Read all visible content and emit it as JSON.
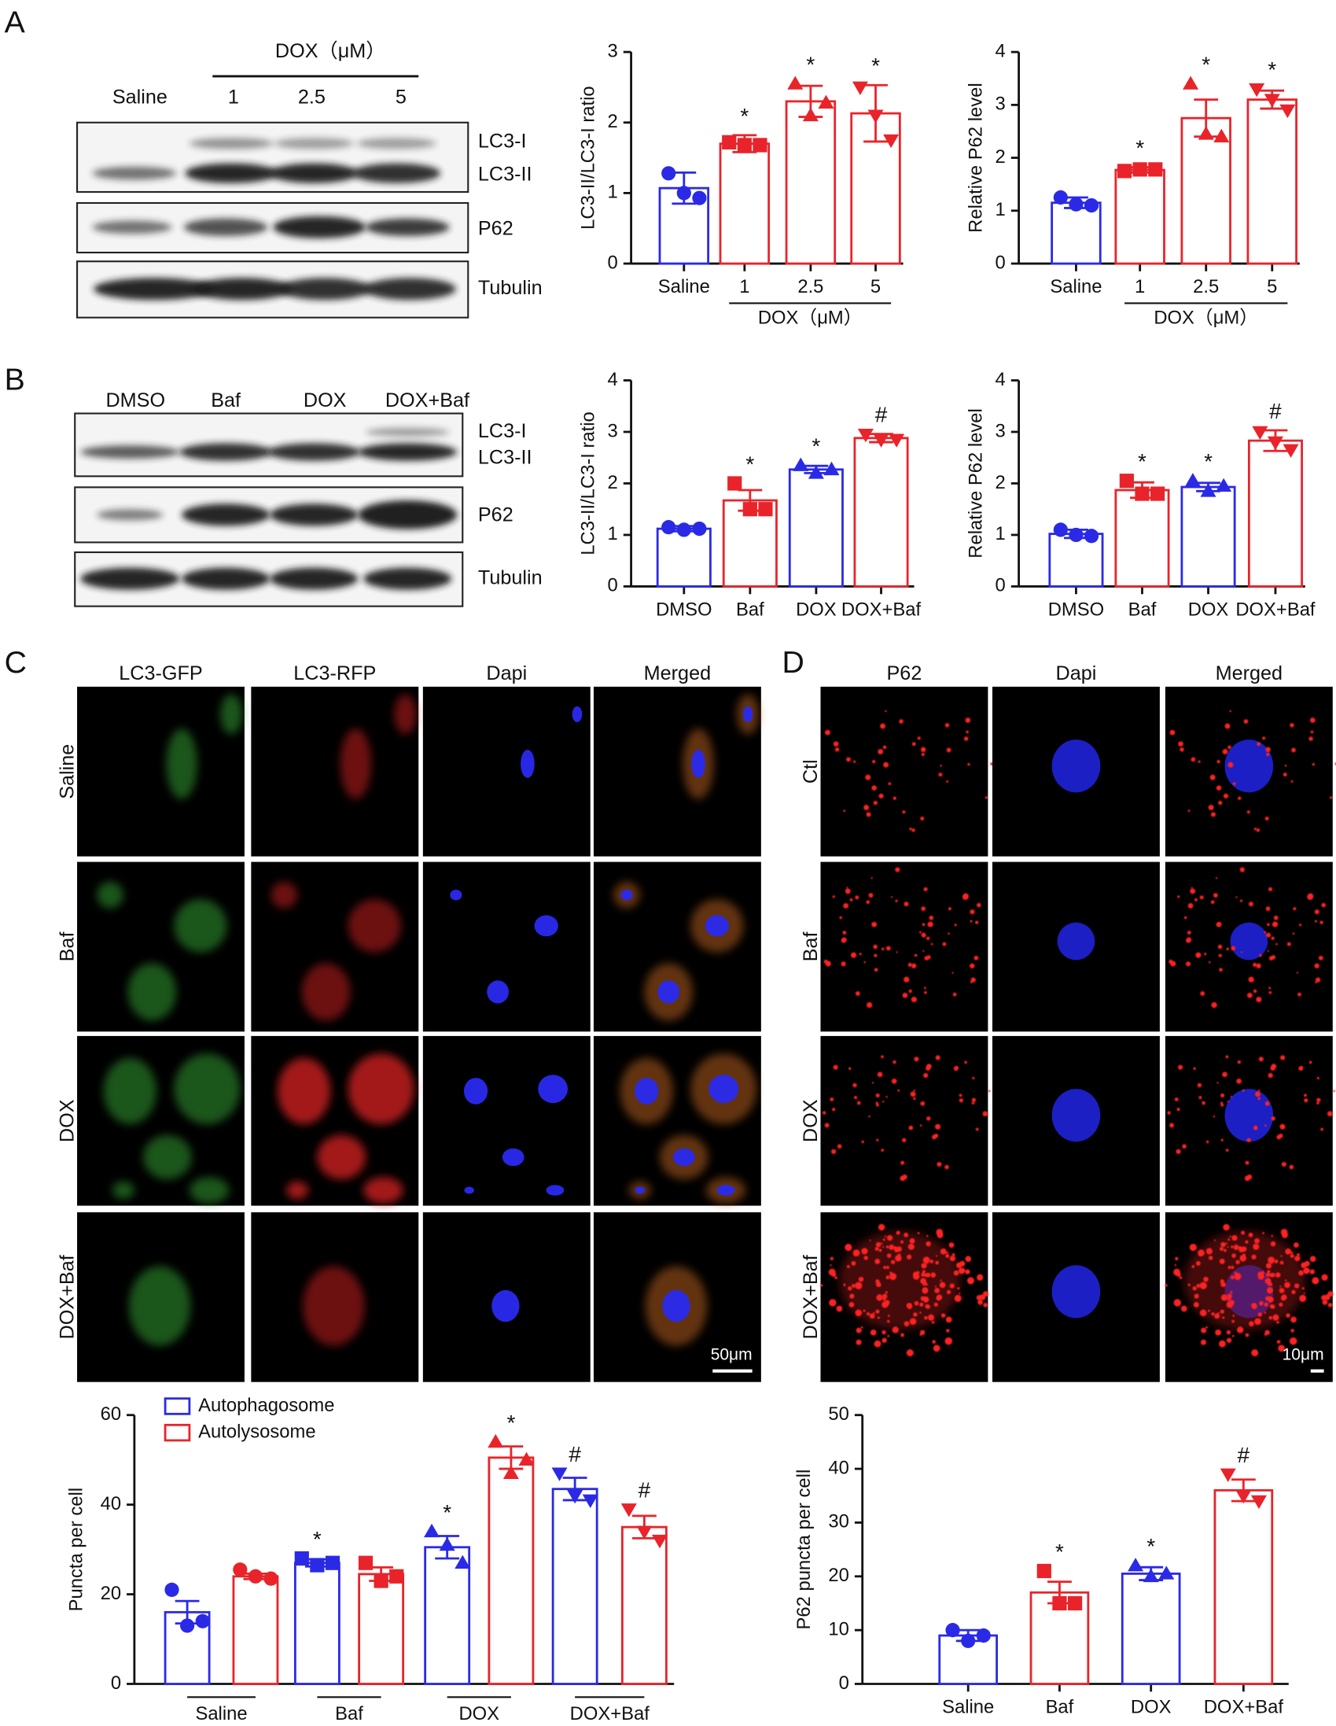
{
  "panel_labels": [
    "A",
    "B",
    "C",
    "D"
  ],
  "blots": [
    {
      "lanes": [
        "Saline",
        "1",
        "2.5",
        "5"
      ],
      "group_label": "DOX（μM）",
      "bands": [
        "LC3-I",
        "LC3-II",
        "P62",
        "Tubulin"
      ]
    },
    {
      "lanes": [
        "DMSO",
        "Baf",
        "DOX",
        "DOX+Baf"
      ],
      "bands": [
        "LC3-I",
        "LC3-II",
        "P62",
        "Tubulin"
      ]
    }
  ],
  "micrographs": [
    {
      "columns": [
        "LC3-GFP",
        "LC3-RFP",
        "Dapi",
        "Merged"
      ],
      "rows": [
        "Saline",
        "Baf",
        "DOX",
        "DOX+Baf"
      ],
      "scale_bar": "50μm"
    },
    {
      "columns": [
        "P62",
        "Dapi",
        "Merged"
      ],
      "rows": [
        "Ctl",
        "Baf",
        "DOX",
        "DOX+Baf"
      ],
      "scale_bar": "10μm"
    }
  ],
  "chart_data": [
    {
      "type": "bar",
      "ylabel": "LC3-II/LC3-I ratio",
      "categories": [
        "Saline",
        "1",
        "2.5",
        "5"
      ],
      "group_label": "DOX（μM）",
      "values": [
        1.07,
        1.7,
        2.3,
        2.13
      ],
      "errors": [
        0.22,
        0.12,
        0.22,
        0.4
      ],
      "points": [
        [
          1.28,
          1.0,
          0.93
        ],
        [
          1.72,
          1.68,
          1.68
        ],
        [
          2.55,
          2.1,
          2.28
        ],
        [
          2.5,
          2.1,
          1.75
        ]
      ],
      "colors": [
        "#2a2ae6",
        "#e8242a",
        "#e8242a",
        "#e8242a"
      ],
      "markers": [
        "circle",
        "square",
        "triangle",
        "triangle-down"
      ],
      "annotations": [
        null,
        "*",
        "*",
        "*"
      ],
      "ylim": [
        0,
        3
      ],
      "yticks": [
        0,
        1,
        2,
        3
      ]
    },
    {
      "type": "bar",
      "ylabel": "Relative P62 level",
      "categories": [
        "Saline",
        "1",
        "2.5",
        "5"
      ],
      "group_label": "DOX（μM）",
      "values": [
        1.15,
        1.77,
        2.75,
        3.1
      ],
      "errors": [
        0.1,
        0.05,
        0.35,
        0.17
      ],
      "points": [
        [
          1.25,
          1.12,
          1.1
        ],
        [
          1.75,
          1.78,
          1.78
        ],
        [
          3.4,
          2.45,
          2.4
        ],
        [
          3.3,
          3.1,
          2.9
        ]
      ],
      "colors": [
        "#2a2ae6",
        "#e8242a",
        "#e8242a",
        "#e8242a"
      ],
      "markers": [
        "circle",
        "square",
        "triangle",
        "triangle-down"
      ],
      "annotations": [
        null,
        "*",
        "*",
        "*"
      ],
      "ylim": [
        0,
        4
      ],
      "yticks": [
        0,
        1,
        2,
        3,
        4
      ]
    },
    {
      "type": "bar",
      "ylabel": "LC3-II/LC3-I ratio",
      "categories": [
        "DMSO",
        "Baf",
        "DOX",
        "DOX+Baf"
      ],
      "values": [
        1.12,
        1.67,
        2.27,
        2.88
      ],
      "errors": [
        0.05,
        0.2,
        0.07,
        0.08
      ],
      "points": [
        [
          1.15,
          1.1,
          1.12
        ],
        [
          2.0,
          1.5,
          1.5
        ],
        [
          2.35,
          2.2,
          2.27
        ],
        [
          2.95,
          2.85,
          2.85
        ]
      ],
      "colors": [
        "#2a2ae6",
        "#e8242a",
        "#2a2ae6",
        "#e8242a"
      ],
      "markers": [
        "circle",
        "square",
        "triangle",
        "triangle-down"
      ],
      "annotations": [
        null,
        "*",
        "*",
        "#"
      ],
      "ylim": [
        0,
        4
      ],
      "yticks": [
        0,
        1,
        2,
        3,
        4
      ]
    },
    {
      "type": "bar",
      "ylabel": "Relative P62 level",
      "categories": [
        "DMSO",
        "Baf",
        "DOX",
        "DOX+Baf"
      ],
      "values": [
        1.02,
        1.87,
        1.93,
        2.83
      ],
      "errors": [
        0.08,
        0.15,
        0.08,
        0.2
      ],
      "points": [
        [
          1.1,
          1.0,
          0.98
        ],
        [
          2.05,
          1.8,
          1.8
        ],
        [
          2.05,
          1.85,
          1.95
        ],
        [
          3.0,
          2.8,
          2.65
        ]
      ],
      "colors": [
        "#2a2ae6",
        "#e8242a",
        "#2a2ae6",
        "#e8242a"
      ],
      "markers": [
        "circle",
        "square",
        "triangle",
        "triangle-down"
      ],
      "annotations": [
        null,
        "*",
        "*",
        "#"
      ],
      "ylim": [
        0,
        4
      ],
      "yticks": [
        0,
        1,
        2,
        3,
        4
      ]
    },
    {
      "type": "grouped_bar",
      "ylabel": "Puncta per cell",
      "categories": [
        "Saline",
        "Baf",
        "DOX",
        "DOX+Baf"
      ],
      "markers": [
        "circle",
        "square",
        "triangle",
        "triangle-down"
      ],
      "legend": "top-left",
      "series": [
        {
          "name": "Autophagosome",
          "color": "#2a2ae6",
          "values": [
            16,
            27,
            30.5,
            43.5
          ],
          "errors": [
            2.5,
            0.8,
            2.5,
            2.5
          ],
          "points": [
            [
              21,
              13,
              14
            ],
            [
              28,
              26.5,
              27
            ],
            [
              34,
              31,
              27
            ],
            [
              47,
              42,
              41
            ]
          ],
          "annotations": [
            null,
            "*",
            "*",
            "#"
          ]
        },
        {
          "name": "Autolysosome",
          "color": "#e8242a",
          "values": [
            24,
            24.5,
            50.5,
            35
          ],
          "errors": [
            0.6,
            1.5,
            2.5,
            2.5
          ],
          "points": [
            [
              25.5,
              24,
              23.5
            ],
            [
              27,
              23,
              24
            ],
            [
              54,
              47,
              50
            ],
            [
              39,
              34,
              32
            ]
          ],
          "annotations": [
            null,
            null,
            "*",
            "#"
          ]
        }
      ],
      "ylim": [
        0,
        60
      ],
      "yticks": [
        0,
        20,
        40,
        60
      ]
    },
    {
      "type": "bar",
      "ylabel": "P62 puncta per cell",
      "categories": [
        "Saline",
        "Baf",
        "DOX",
        "DOX+Baf"
      ],
      "values": [
        9,
        17,
        20.5,
        36
      ],
      "errors": [
        1,
        2,
        1.2,
        2
      ],
      "points": [
        [
          10,
          8,
          9
        ],
        [
          21,
          15,
          15
        ],
        [
          22,
          20,
          20.5
        ],
        [
          39,
          35,
          34
        ]
      ],
      "colors": [
        "#2a2ae6",
        "#e8242a",
        "#2a2ae6",
        "#e8242a"
      ],
      "markers": [
        "circle",
        "square",
        "triangle",
        "triangle-down"
      ],
      "annotations": [
        null,
        "*",
        "*",
        "#"
      ],
      "ylim": [
        0,
        50
      ],
      "yticks": [
        0,
        10,
        20,
        30,
        40,
        50
      ]
    }
  ]
}
